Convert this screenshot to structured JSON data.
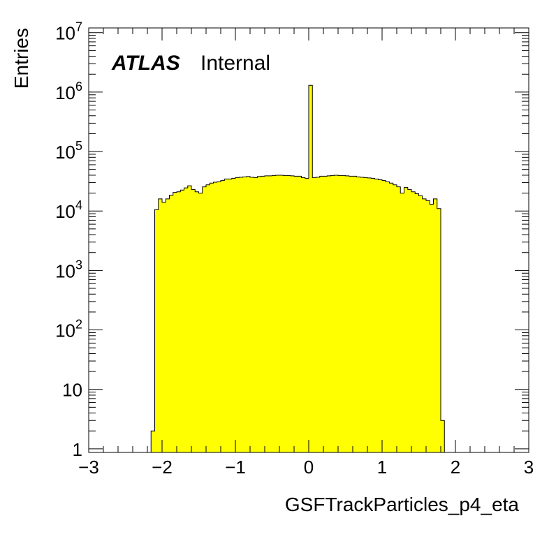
{
  "chart_data": {
    "type": "bar",
    "title": "",
    "label_bold": "ATLAS",
    "label_normal": "Internal",
    "xlabel": "GSFTrackParticles_p4_eta",
    "ylabel": "Entries",
    "xlim": [
      -3,
      3
    ],
    "ylim": [
      0.87,
      12000000
    ],
    "yscale": "log",
    "grid": false,
    "legend": "none",
    "fill_color": "#ffff00",
    "line_color": "#000000",
    "x_ticks": [
      {
        "value": -3,
        "label": "−3"
      },
      {
        "value": -2,
        "label": "−2"
      },
      {
        "value": -1,
        "label": "−1"
      },
      {
        "value": 0,
        "label": "0"
      },
      {
        "value": 1,
        "label": "1"
      },
      {
        "value": 2,
        "label": "2"
      },
      {
        "value": 3,
        "label": "3"
      }
    ],
    "y_ticks": [
      {
        "value": 1,
        "base": "1",
        "exp": ""
      },
      {
        "value": 10,
        "base": "10",
        "exp": ""
      },
      {
        "value": 100,
        "base": "10",
        "exp": "2"
      },
      {
        "value": 1000,
        "base": "10",
        "exp": "3"
      },
      {
        "value": 10000,
        "base": "10",
        "exp": "4"
      },
      {
        "value": 100000,
        "base": "10",
        "exp": "5"
      },
      {
        "value": 1000000,
        "base": "10",
        "exp": "6"
      },
      {
        "value": 10000000,
        "base": "10",
        "exp": "7"
      }
    ],
    "bin_low": -3,
    "bin_width": 0.05,
    "values": [
      0,
      0,
      0,
      0,
      0,
      0,
      0,
      0,
      0,
      0,
      0,
      0,
      0,
      0,
      0,
      0,
      0,
      2,
      10500,
      16000,
      14000,
      16000,
      18500,
      20500,
      21000,
      22500,
      24500,
      26500,
      23000,
      21000,
      20000,
      25500,
      27500,
      29500,
      30500,
      31000,
      32500,
      34500,
      34500,
      35500,
      36500,
      37000,
      37500,
      38000,
      37000,
      36500,
      38000,
      38500,
      39000,
      39000,
      39500,
      40000,
      40000,
      39500,
      39500,
      39000,
      38500,
      38500,
      36500,
      35500,
      1300000,
      36500,
      37000,
      38500,
      38500,
      39000,
      39500,
      40000,
      39500,
      39500,
      39000,
      38500,
      38500,
      37500,
      37000,
      36500,
      36000,
      35500,
      34500,
      33500,
      32500,
      31000,
      29500,
      27500,
      25500,
      20000,
      25000,
      23000,
      21000,
      19500,
      18000,
      16000,
      15000,
      13000,
      16000,
      11000,
      3,
      0,
      0,
      0,
      0,
      0,
      0,
      0,
      0,
      0,
      0,
      0,
      0,
      0,
      0,
      0,
      0
    ]
  }
}
